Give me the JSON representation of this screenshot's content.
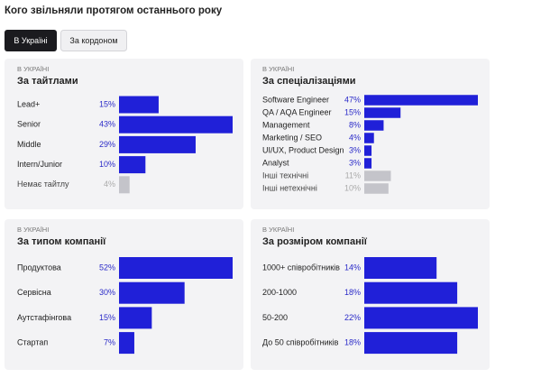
{
  "title": "Кого звільняли протягом останнього року",
  "tabs": [
    "В Україні",
    "За кордоном"
  ],
  "chart_data": [
    {
      "type": "bar",
      "subtitle": "В УКРАЇНІ",
      "title": "За тайтлами",
      "categories": [
        "Lead+",
        "Senior",
        "Middle",
        "Intern/Junior",
        "Немає тайтлу"
      ],
      "values": [
        15,
        43,
        29,
        10,
        4
      ],
      "value_labels": [
        "15%",
        "43%",
        "29%",
        "10%",
        "4%"
      ],
      "colors": [
        "#2020d8",
        "#2020d8",
        "#2020d8",
        "#2020d8",
        "#c4c4ca"
      ]
    },
    {
      "type": "bar",
      "subtitle": "В УКРАЇНІ",
      "title": "За спеціалізаціями",
      "categories": [
        "Software Engineer",
        "QA / AQA Engineer",
        "Management",
        "Marketing / SEO",
        "UI/UX, Product Design",
        "Analyst",
        "Інші технічні",
        "Інші нетехнічні"
      ],
      "values": [
        47,
        15,
        8,
        4,
        3,
        3,
        11,
        10
      ],
      "value_labels": [
        "47%",
        "15%",
        "8%",
        "4%",
        "3%",
        "3%",
        "11%",
        "10%"
      ],
      "colors": [
        "#2020d8",
        "#2020d8",
        "#2020d8",
        "#2020d8",
        "#2020d8",
        "#2020d8",
        "#c4c4ca",
        "#c4c4ca"
      ]
    },
    {
      "type": "bar",
      "subtitle": "В УКРАЇНІ",
      "title": "За типом компанії",
      "categories": [
        "Продуктова",
        "Сервісна",
        "Аутстафінгова",
        "Стартап"
      ],
      "values": [
        52,
        30,
        15,
        7
      ],
      "value_labels": [
        "52%",
        "30%",
        "15%",
        "7%"
      ],
      "colors": [
        "#2020d8",
        "#2020d8",
        "#2020d8",
        "#2020d8"
      ]
    },
    {
      "type": "bar",
      "subtitle": "В УКРАЇНІ",
      "title": "За розміром компанії",
      "categories": [
        "1000+ співробітників",
        "200-1000",
        "50-200",
        "До 50 співробітників"
      ],
      "values": [
        14,
        18,
        22,
        18
      ],
      "value_labels": [
        "14%",
        "18%",
        "22%",
        "18%"
      ],
      "colors": [
        "#2020d8",
        "#2020d8",
        "#2020d8",
        "#2020d8"
      ]
    }
  ]
}
